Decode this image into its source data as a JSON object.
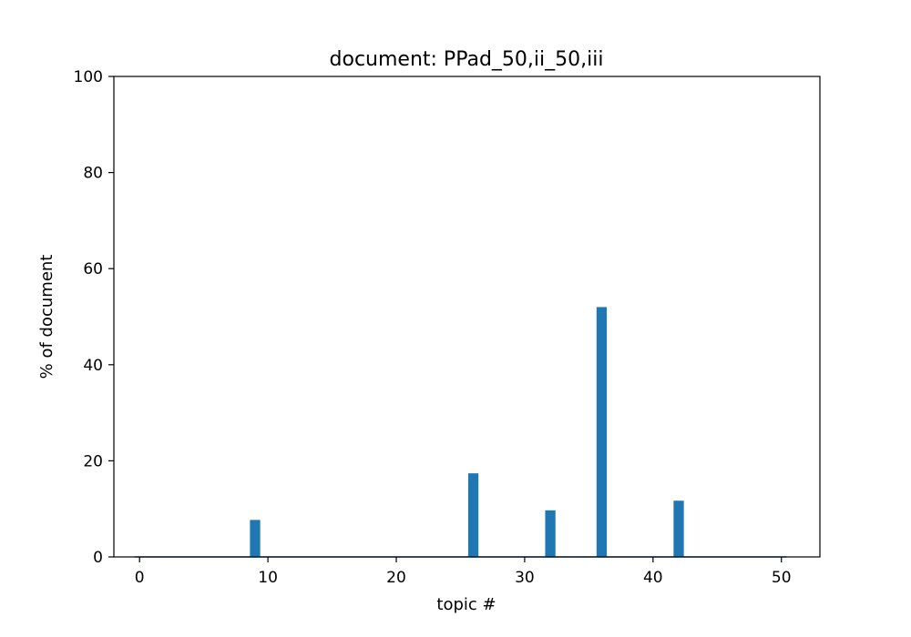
{
  "chart_data": {
    "type": "bar",
    "title": "document: PPad_50,ii_50,iii",
    "xlabel": "topic #",
    "ylabel": "% of document",
    "xlim": [
      -2,
      53
    ],
    "ylim": [
      0,
      100
    ],
    "xticks": [
      0,
      10,
      20,
      30,
      40,
      50
    ],
    "yticks": [
      0,
      20,
      40,
      60,
      80,
      100
    ],
    "bar_width": 0.8,
    "bar_color": "#1f77b4",
    "x": [
      9,
      26,
      32,
      36,
      42
    ],
    "values": [
      7.7,
      17.4,
      9.7,
      52.0,
      11.7
    ],
    "grid": false,
    "legend": "none"
  }
}
